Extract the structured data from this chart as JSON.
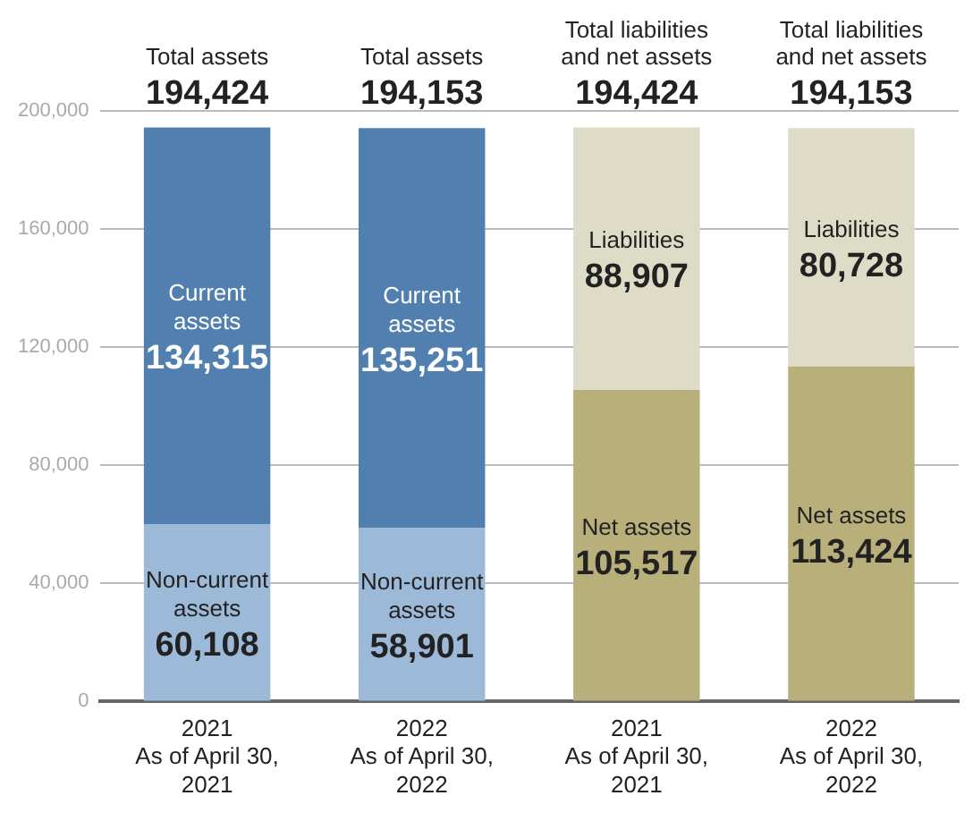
{
  "chart_data": {
    "type": "bar",
    "stacked": true,
    "categories": [
      "2021\nAs of April 30,\n2021",
      "2022\nAs of April 30,\n2022",
      "2021\nAs of April 30,\n2021",
      "2022\nAs of April 30,\n2022"
    ],
    "series": [
      {
        "name": "Non-current assets",
        "color": "#9cb9d8",
        "values": [
          60108,
          58901,
          null,
          null
        ],
        "value_labels": [
          "60,108",
          "58,901",
          null,
          null
        ]
      },
      {
        "name": "Current assets",
        "color": "#5180b0",
        "values": [
          134315,
          135251,
          null,
          null
        ],
        "value_labels": [
          "134,315",
          "135,251",
          null,
          null
        ]
      },
      {
        "name": "Net assets",
        "color": "#b9af7b",
        "values": [
          null,
          null,
          105517,
          113424
        ],
        "value_labels": [
          null,
          null,
          "105,517",
          "113,424"
        ]
      },
      {
        "name": "Liabilities",
        "color": "#dedcc6",
        "values": [
          null,
          null,
          88907,
          80728
        ],
        "value_labels": [
          null,
          null,
          "88,907",
          "80,728"
        ]
      }
    ],
    "ylim": [
      0,
      200000
    ],
    "yticks": [
      0,
      {
        "value": 40000,
        "label": "40,000"
      },
      {
        "value": 80000,
        "label": "80,000"
      },
      {
        "value": 120000,
        "label": "120,000"
      },
      {
        "value": 160000,
        "label": "160,000"
      },
      {
        "value": 200000,
        "label": "200,000"
      }
    ],
    "grid": "y",
    "legend": false,
    "totals": [
      "194,424",
      "194,153",
      "194,424",
      "194,153"
    ],
    "annotations": [
      "Total assets",
      "Total assets",
      "Total liabilities and net assets",
      "Total liabilities and net assets"
    ]
  }
}
